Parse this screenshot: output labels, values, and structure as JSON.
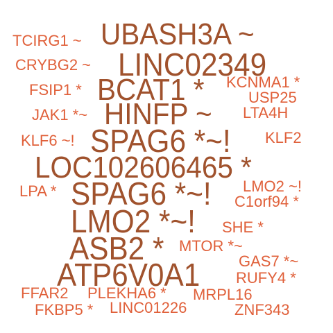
{
  "colors": {
    "large": "#a0522d",
    "small": "#e0603a",
    "background": "#ffffff"
  },
  "words": {
    "ubash3a": "UBASH3A ~",
    "linc02349": "LINC02349",
    "bcat1": "BCAT1 *",
    "hinfp": "HINFP ~",
    "spag6_a": "SPAG6 *~!",
    "loc102606465": "LOC102606465 *",
    "spag6_b": "SPAG6 *~!",
    "lmo2": "LMO2 *~!",
    "asb2": "ASB2 *",
    "atp6v0a1": "ATP6V0A1",
    "tcirg1": "TCIRG1 ~",
    "crybg2": "CRYBG2 ~",
    "fsip1": "FSIP1 *",
    "kcnma1": "KCNMA1 *",
    "usp25": "USP25",
    "jak1": "JAK1 *~",
    "lta4h": "LTA4H",
    "klf6": "KLF6 ~!",
    "klf2": "KLF2",
    "lpa": "LPA *",
    "lmo2_small": "LMO2 ~!",
    "c1orf94": "C1orf94 *",
    "she": "SHE *",
    "mtor": "MTOR *~",
    "gas7": "GAS7 *~",
    "rufy4": "RUFY4 *",
    "ffar2": "FFAR2",
    "plekha6": "PLEKHA6 *",
    "mrpl16": "MRPL16",
    "fkbp5": "FKBP5 *",
    "linc01226": "LINC01226",
    "znf343": "ZNF343"
  }
}
